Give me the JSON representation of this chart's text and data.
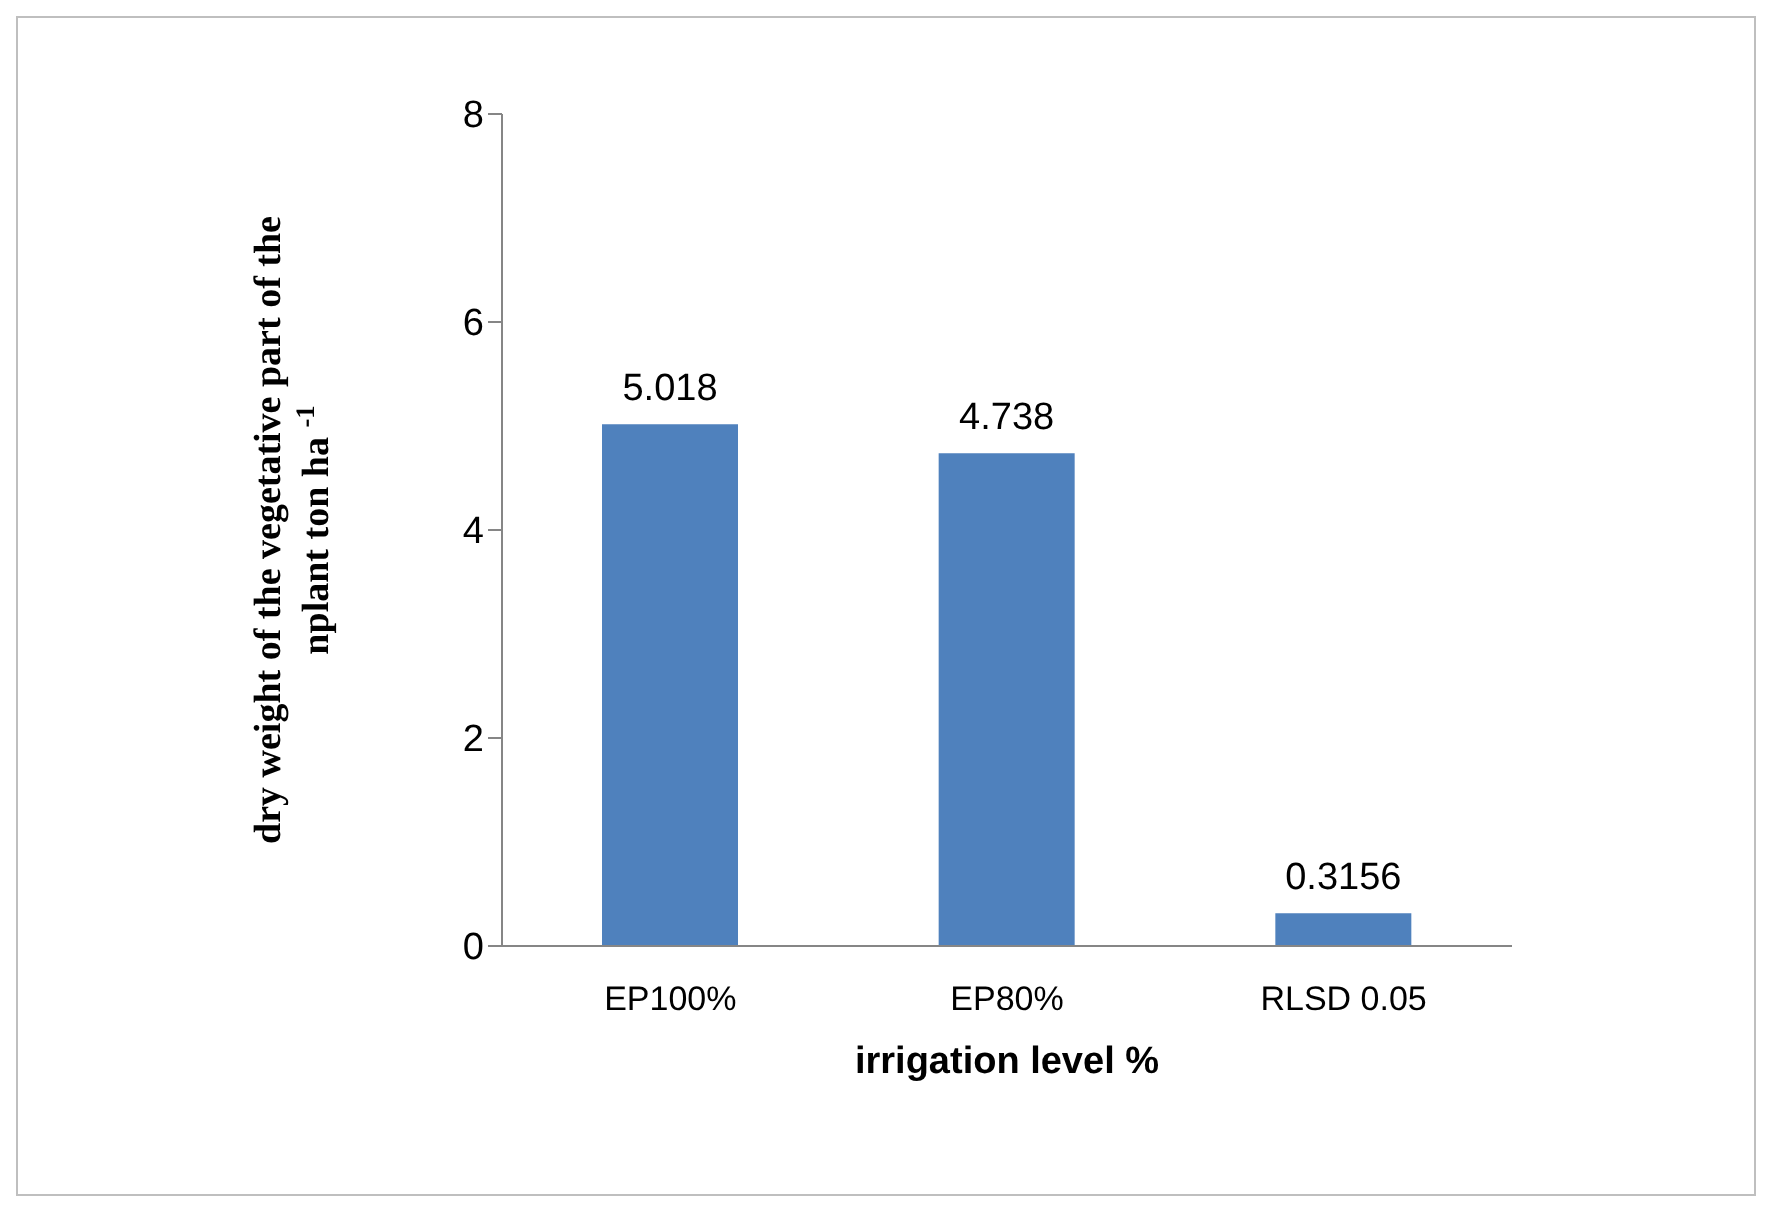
{
  "chart_data": {
    "type": "bar",
    "xlabel": "irrigation level %",
    "ylabel": "dry weight of the vegetative part of the\nnplant   ton  ha $^{-1}$",
    "categories": [
      "EP100%",
      "EP80%",
      "RLSD 0.05"
    ],
    "values": [
      5.018,
      4.738,
      0.3156
    ],
    "color": "#4f81bd",
    "ylim": [
      0,
      8
    ],
    "yticks": [
      0,
      2,
      4,
      6,
      8
    ],
    "data_labels": true
  }
}
